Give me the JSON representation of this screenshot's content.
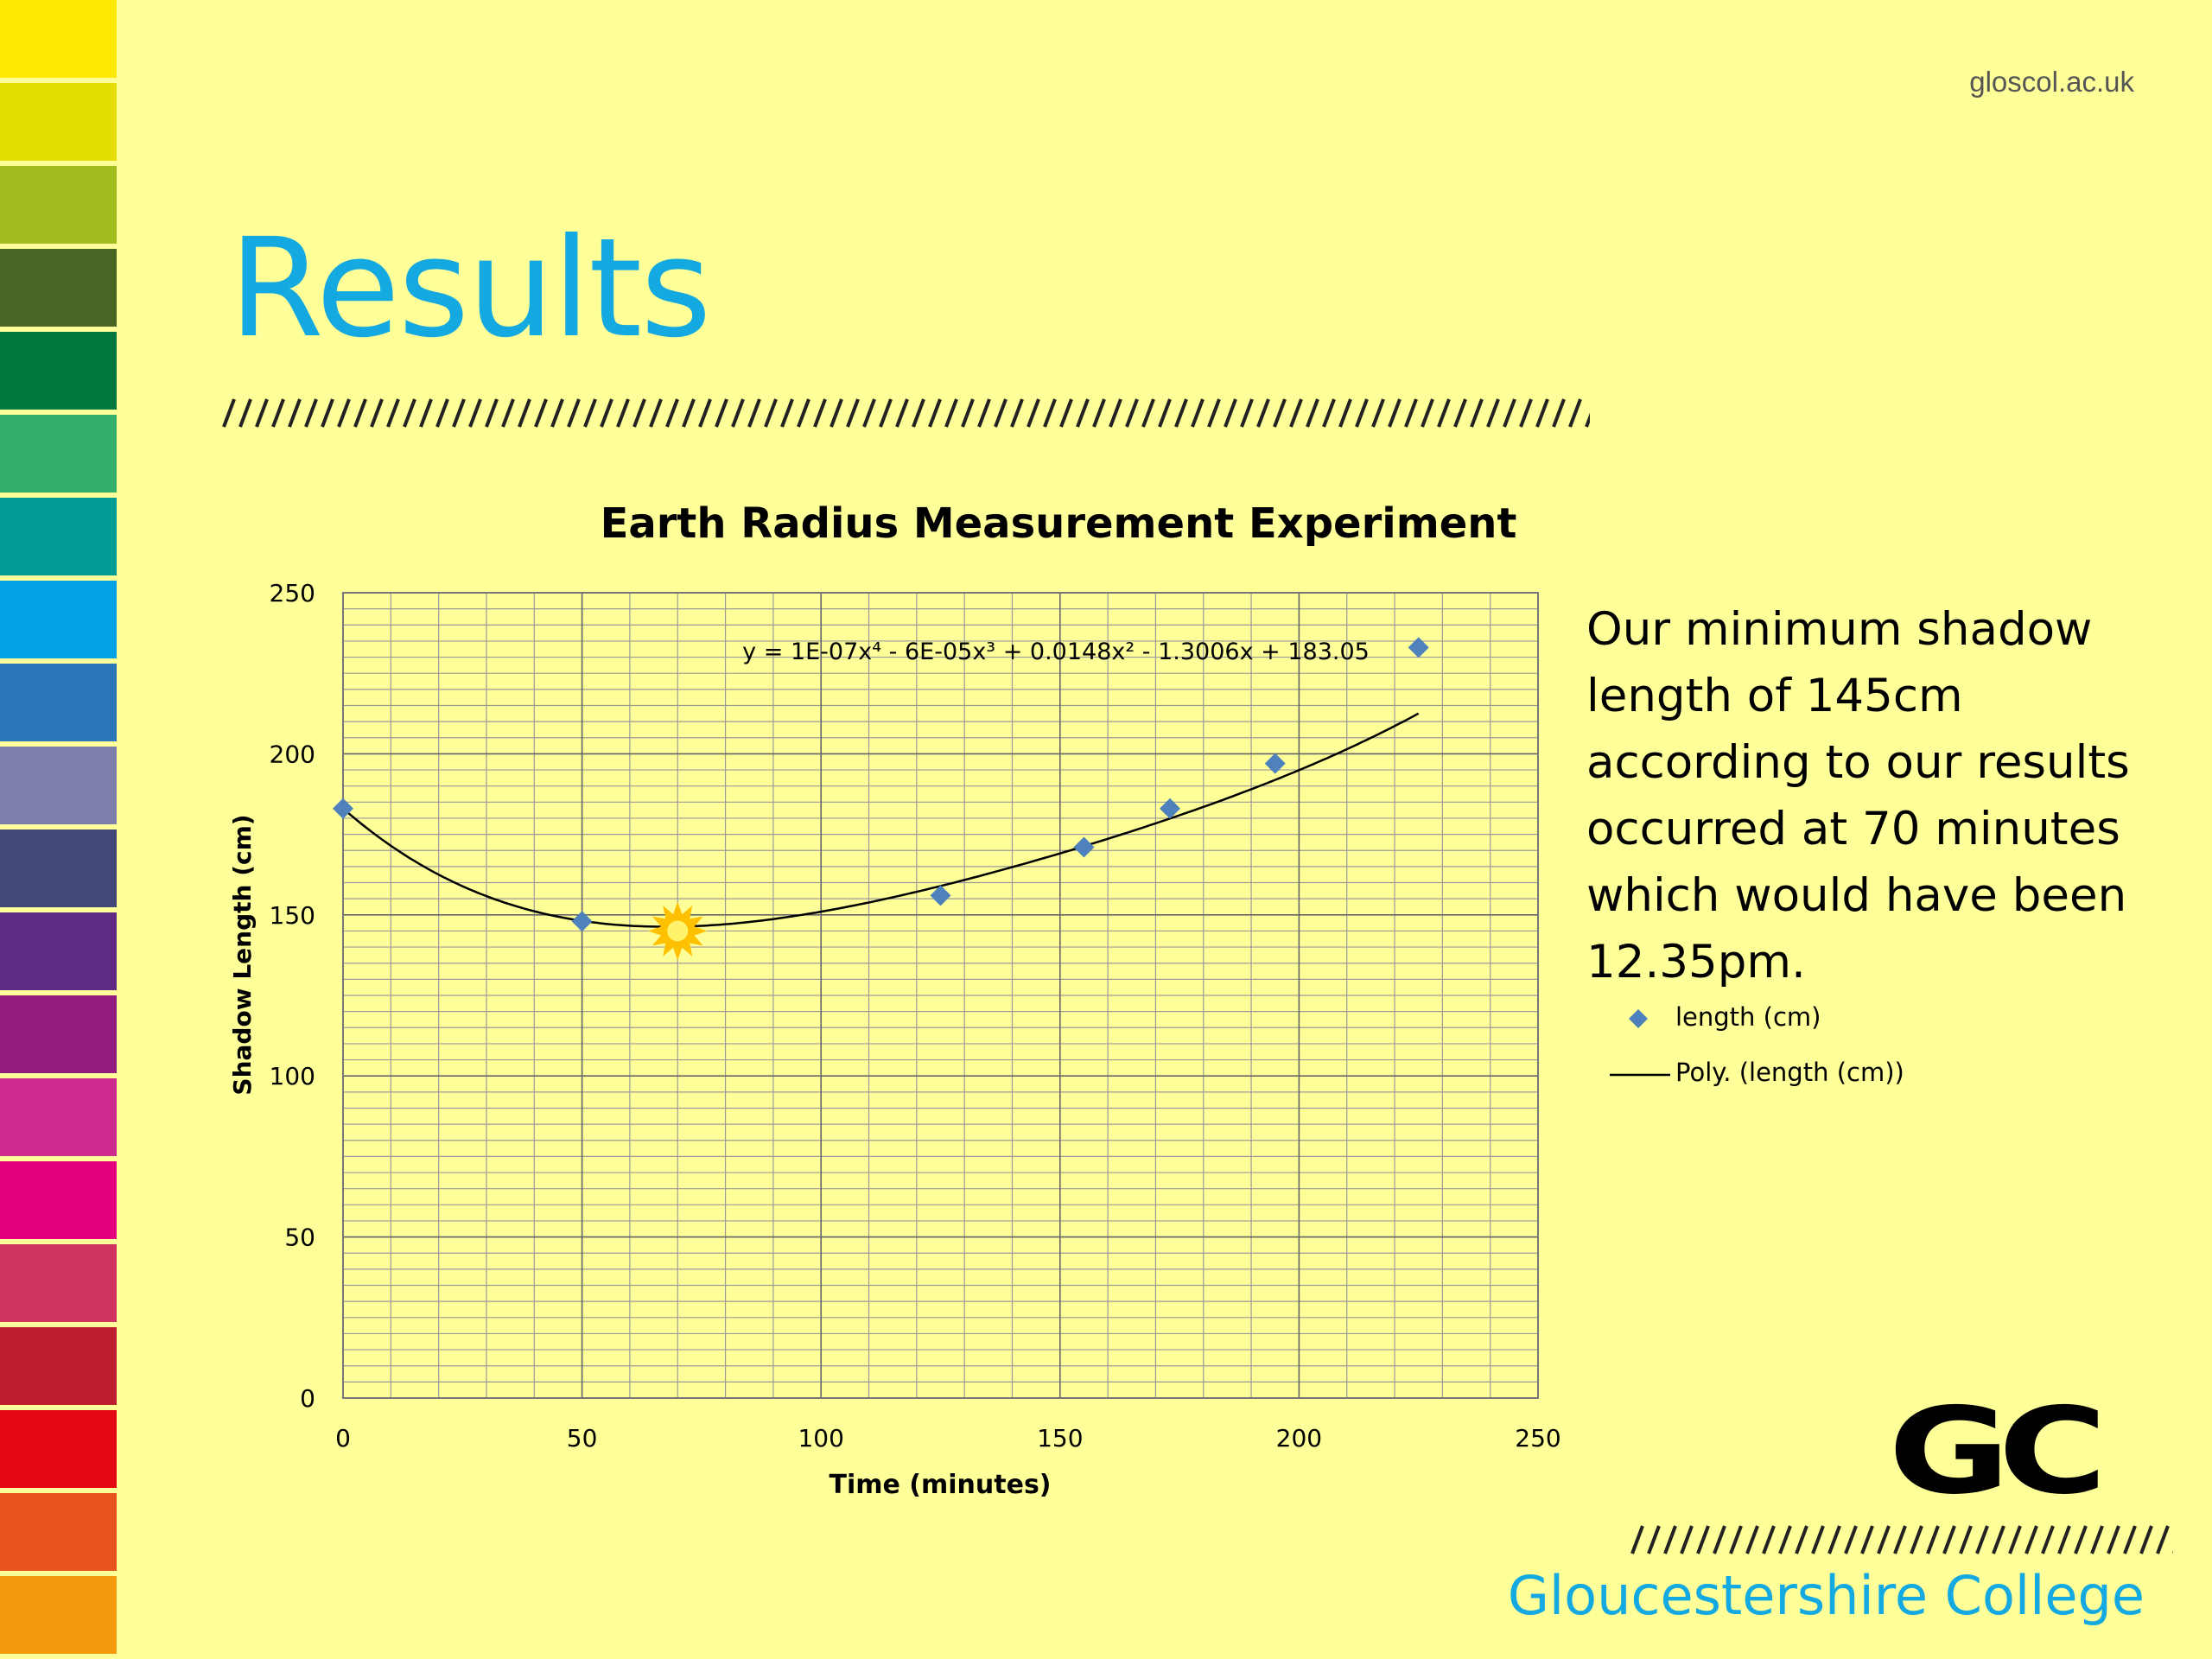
{
  "site_url": "gloscol.ac.uk",
  "title": "Results",
  "note": "Our minimum shadow length of 145cm according to our results occurred at 70 minutes which would have been 12.35pm.",
  "brand": {
    "college_name": "Gloucestershire College",
    "logo_text": "GC",
    "accent": "#14a9e1",
    "background": "#ffff99"
  },
  "side_stripe_colors": [
    "#ffe900",
    "#e3de00",
    "#a0bd1d",
    "#4a6423",
    "#00793e",
    "#34b06b",
    "#009b95",
    "#00a2e4",
    "#2b75bb",
    "#7f7fad",
    "#444879",
    "#5e2a84",
    "#931c80",
    "#cd2a8e",
    "#e4007d",
    "#d0325f",
    "#be1e2d",
    "#e30613",
    "#e9531d",
    "#f39a0d"
  ],
  "chart_data": {
    "type": "scatter",
    "title": "Earth Radius Measurement Experiment",
    "xlabel": "Time (minutes)",
    "ylabel": "Shadow Length (cm)",
    "xlim": [
      0,
      250
    ],
    "ylim": [
      0,
      250
    ],
    "x_ticks": [
      0,
      50,
      100,
      150,
      200,
      250
    ],
    "y_ticks": [
      0,
      50,
      100,
      150,
      200,
      250
    ],
    "grid": true,
    "legend_position": "right",
    "series": [
      {
        "name": "length (cm)",
        "marker": "diamond",
        "color": "#4f81bd",
        "x": [
          0,
          50,
          125,
          155,
          173,
          195,
          225
        ],
        "y": [
          183,
          148,
          156,
          171,
          183,
          197,
          233
        ]
      },
      {
        "name": "Poly. (length (cm))",
        "type": "trendline",
        "color": "#000000",
        "coefficients": [
          1e-07,
          -6e-05,
          0.0148,
          -1.3006,
          183.05
        ]
      }
    ],
    "trendline_equation": "y = 1E-07x⁴ - 6E-05x³ + 0.0148x² - 1.3006x + 183.05",
    "annotation": {
      "type": "sun-icon",
      "x": 70,
      "y": 145,
      "color": "#ffc000"
    }
  }
}
